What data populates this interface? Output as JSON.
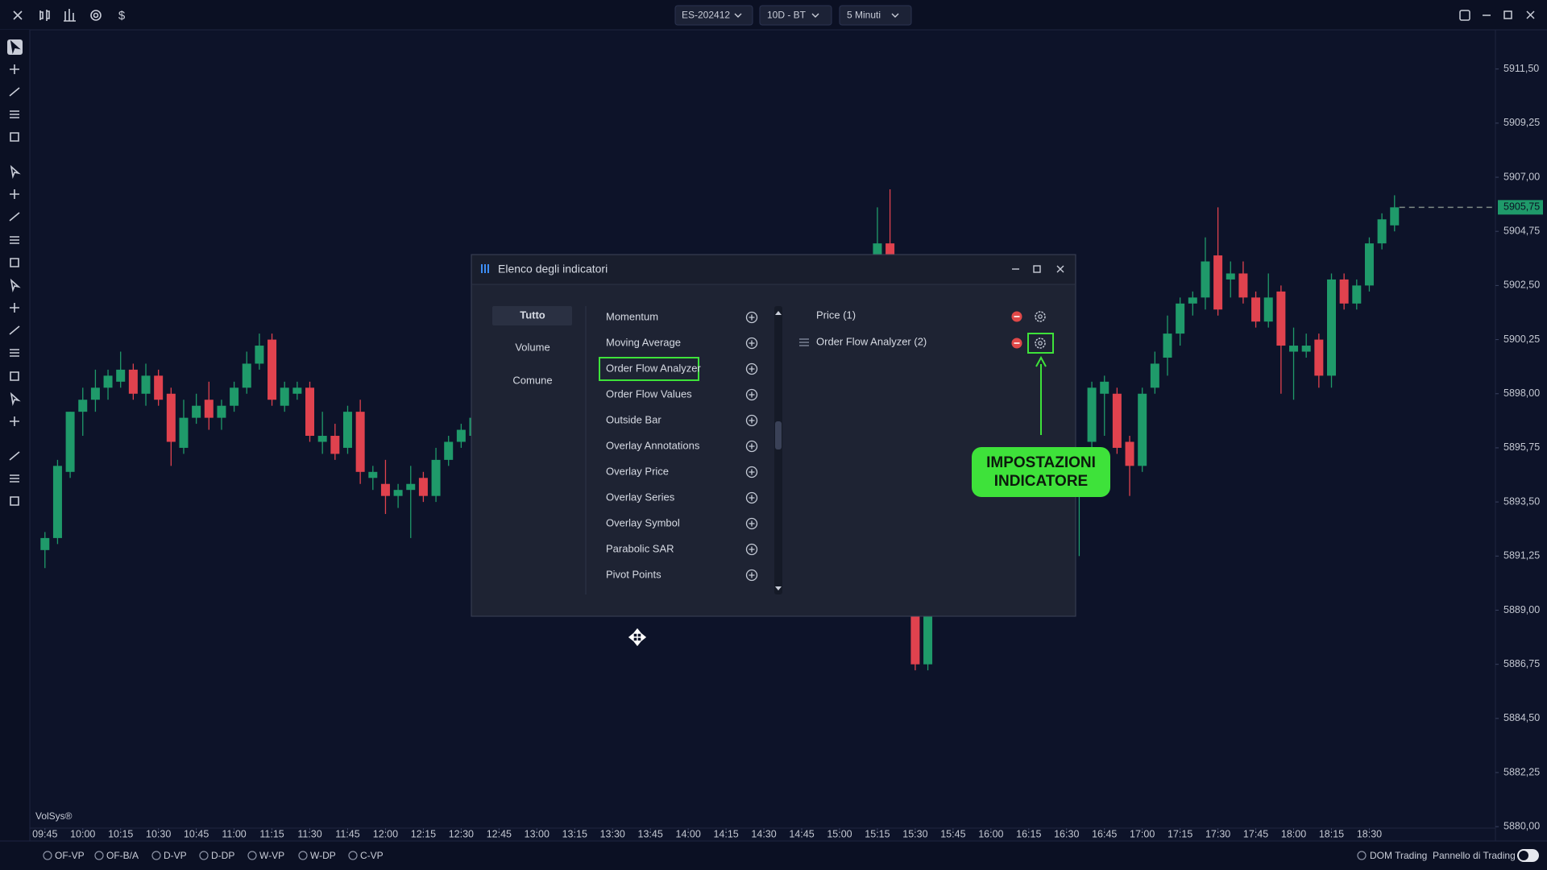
{
  "toolbar": {
    "currency_icon": "$",
    "symbol": "ES-202412",
    "range": "10D - BT",
    "interval": "5 Minuti"
  },
  "chart_data": {
    "type": "candlestick",
    "x": [
      "09:45",
      "09:50",
      "09:55",
      "10:00",
      "10:05",
      "10:10",
      "10:15",
      "10:20",
      "10:25",
      "10:30",
      "10:35",
      "10:40",
      "10:45",
      "10:50",
      "10:55",
      "11:00",
      "11:05",
      "11:10",
      "11:15",
      "11:20",
      "11:25",
      "11:30",
      "11:35",
      "11:40",
      "11:45",
      "11:50",
      "11:55",
      "12:00",
      "12:05",
      "12:10",
      "12:15",
      "12:20",
      "12:25",
      "12:30",
      "12:35",
      "15:15",
      "15:20",
      "15:30",
      "15:35",
      "16:35",
      "16:40",
      "16:45",
      "16:50",
      "16:55",
      "17:00",
      "17:05",
      "17:10",
      "17:15",
      "17:20",
      "17:25",
      "17:30",
      "17:35",
      "17:40",
      "17:45",
      "17:50",
      "17:55",
      "18:00",
      "18:05",
      "18:10",
      "18:15",
      "18:20",
      "18:25",
      "18:30",
      "18:35",
      "18:40"
    ],
    "open": [
      5891.5,
      5892.0,
      5894.75,
      5897.25,
      5897.75,
      5898.25,
      5898.5,
      5899.0,
      5898.0,
      5898.75,
      5898.0,
      5895.75,
      5897.0,
      5897.75,
      5897.0,
      5897.5,
      5898.25,
      5899.25,
      5900.25,
      5897.5,
      5898.0,
      5898.25,
      5896.0,
      5896.25,
      5895.75,
      5897.25,
      5894.5,
      5894.25,
      5893.75,
      5894.0,
      5894.5,
      5893.75,
      5895.25,
      5896.0,
      5896.25,
      5899.0,
      5904.25,
      5893.0,
      5886.75,
      5893.75,
      5896.0,
      5898.0,
      5898.0,
      5896.0,
      5895.0,
      5898.25,
      5899.5,
      5900.5,
      5901.75,
      5902.0,
      5903.75,
      5902.75,
      5903.0,
      5902.0,
      5901.0,
      5902.25,
      5899.75,
      5899.75,
      5900.25,
      5898.75,
      5902.75,
      5901.75,
      5902.5,
      5904.25,
      5905.0
    ],
    "high": [
      5892.25,
      5895.25,
      5897.25,
      5898.25,
      5899.0,
      5899.0,
      5899.75,
      5899.25,
      5899.25,
      5899.0,
      5898.25,
      5897.75,
      5898.0,
      5898.5,
      5897.75,
      5898.5,
      5899.75,
      5900.5,
      5900.5,
      5898.5,
      5898.5,
      5898.5,
      5897.25,
      5896.75,
      5897.5,
      5897.75,
      5895.0,
      5895.25,
      5894.25,
      5895.0,
      5894.75,
      5895.75,
      5896.25,
      5896.75,
      5897.25,
      5905.75,
      5906.5,
      5893.5,
      5890.5,
      5895.0,
      5898.5,
      5898.75,
      5898.25,
      5896.25,
      5898.25,
      5899.75,
      5901.25,
      5902.0,
      5902.25,
      5904.5,
      5905.75,
      5903.5,
      5903.5,
      5902.25,
      5903.0,
      5902.5,
      5900.75,
      5900.5,
      5900.5,
      5903.0,
      5903.0,
      5902.75,
      5904.5,
      5905.5,
      5906.25
    ],
    "low": [
      5890.75,
      5891.75,
      5894.5,
      5896.25,
      5897.25,
      5897.75,
      5898.25,
      5897.75,
      5897.5,
      5897.5,
      5895.0,
      5895.5,
      5896.75,
      5896.5,
      5896.5,
      5897.25,
      5898.0,
      5899.0,
      5897.5,
      5897.25,
      5897.75,
      5896.0,
      5895.5,
      5895.25,
      5895.5,
      5894.25,
      5894.0,
      5893.0,
      5893.25,
      5892.0,
      5893.5,
      5893.5,
      5895.0,
      5895.75,
      5896.0,
      5898.5,
      5895.5,
      5886.5,
      5886.5,
      5891.25,
      5895.75,
      5896.25,
      5895.5,
      5893.75,
      5894.75,
      5898.0,
      5898.75,
      5900.0,
      5901.25,
      5901.5,
      5901.25,
      5902.0,
      5901.75,
      5900.75,
      5900.75,
      5898.0,
      5897.75,
      5899.5,
      5898.25,
      5898.25,
      5901.5,
      5901.5,
      5902.25,
      5904.0,
      5904.75
    ],
    "close": [
      5892.0,
      5895.0,
      5897.25,
      5897.75,
      5898.25,
      5898.75,
      5899.0,
      5898.0,
      5898.75,
      5897.75,
      5896.0,
      5897.0,
      5897.5,
      5897.0,
      5897.5,
      5898.25,
      5899.25,
      5900.0,
      5897.75,
      5898.25,
      5898.25,
      5896.25,
      5896.25,
      5895.5,
      5897.25,
      5894.75,
      5894.75,
      5893.75,
      5894.0,
      5894.25,
      5893.75,
      5895.25,
      5896.0,
      5896.5,
      5897.0,
      5904.25,
      5896.0,
      5886.75,
      5890.0,
      5894.75,
      5898.25,
      5898.5,
      5895.75,
      5895.0,
      5898.0,
      5899.25,
      5900.5,
      5901.75,
      5902.0,
      5903.5,
      5901.5,
      5903.0,
      5902.0,
      5901.0,
      5902.0,
      5900.0,
      5900.0,
      5900.0,
      5898.75,
      5902.75,
      5901.75,
      5902.5,
      5904.25,
      5905.25,
      5905.75
    ],
    "up_color": "#1f9a6a",
    "down_color": "#e0424e",
    "xlim": [
      "09:39",
      "19:20"
    ],
    "xticks": [
      "09:45",
      "10:00",
      "10:15",
      "10:30",
      "10:45",
      "11:00",
      "11:15",
      "11:30",
      "11:45",
      "12:00",
      "12:15",
      "12:30",
      "12:45",
      "13:00",
      "13:15",
      "13:30",
      "13:45",
      "14:00",
      "14:15",
      "14:30",
      "14:45",
      "15:00",
      "15:15",
      "15:30",
      "15:45",
      "16:00",
      "16:15",
      "16:30",
      "16:45",
      "17:00",
      "17:15",
      "17:30",
      "17:45",
      "18:00",
      "18:15",
      "18:30"
    ],
    "ylim": [
      5879.94,
      5913.13
    ],
    "yticks": [
      {
        "value": 5911.5,
        "label": "5911,50"
      },
      {
        "value": 5909.25,
        "label": "5909,25"
      },
      {
        "value": 5907,
        "label": "5907,00"
      },
      {
        "value": 5904.75,
        "label": "5904,75"
      },
      {
        "value": 5902.5,
        "label": "5902,50"
      },
      {
        "value": 5900.25,
        "label": "5900,25"
      },
      {
        "value": 5898,
        "label": "5898,00"
      },
      {
        "value": 5895.75,
        "label": "5895,75"
      },
      {
        "value": 5893.5,
        "label": "5893,50"
      },
      {
        "value": 5891.25,
        "label": "5891,25"
      },
      {
        "value": 5889,
        "label": "5889,00"
      },
      {
        "value": 5886.75,
        "label": "5886,75"
      },
      {
        "value": 5884.5,
        "label": "5884,50"
      },
      {
        "value": 5882.25,
        "label": "5882,25"
      },
      {
        "value": 5880,
        "label": "5880,00"
      }
    ],
    "last_price": {
      "value": 5905.75,
      "label": "5905,75"
    },
    "watermark": "VolSys®"
  },
  "dialog": {
    "title": "Elenco degli indicatori",
    "tabs": [
      "Tutto",
      "Volume",
      "Comune"
    ],
    "selected_tab": 0,
    "indicators": [
      "Momentum",
      "Moving Average",
      "Order Flow Analyzer",
      "Order Flow Values",
      "Outside Bar",
      "Overlay Annotations",
      "Overlay Price",
      "Overlay Series",
      "Overlay Symbol",
      "Parabolic SAR",
      "Pivot Points"
    ],
    "highlighted_indicator": 2,
    "active": [
      "Price (1)",
      "Order Flow Analyzer (2)"
    ],
    "highlighted_settings": 1
  },
  "annotation": {
    "lines": [
      "IMPOSTAZIONI",
      "INDICATORE"
    ],
    "color": "#3ee23a"
  },
  "status_bar": {
    "studies": [
      "OF-VP",
      "OF-B/A",
      "D-VP",
      "D-DP",
      "W-VP",
      "W-DP",
      "C-VP"
    ],
    "dom": "DOM Trading",
    "panel": "Pannello di Trading"
  }
}
